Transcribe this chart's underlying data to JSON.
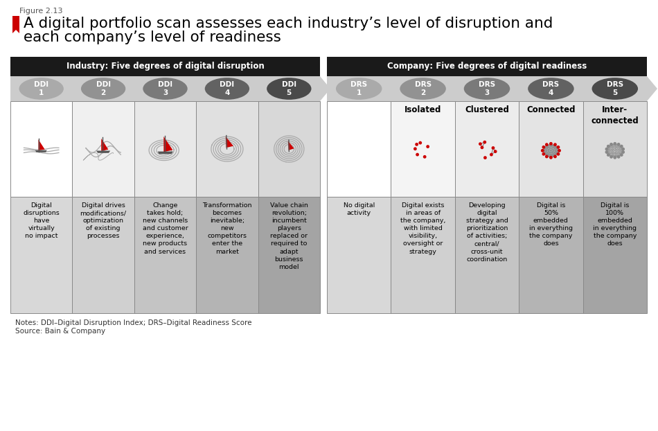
{
  "figure_label": "Figure 2.13",
  "title_line1": "A digital portfolio scan assesses each industry’s level of disruption and",
  "title_line2": "each company’s level of readiness",
  "red_color": "#cc0000",
  "bg_color": "#ffffff",
  "notes": "Notes: DDI–Digital Disruption Index; DRS–Digital Readiness Score",
  "source": "Source: Bain & Company",
  "left_header": "Industry: Five degrees of digital disruption",
  "right_header": "Company: Five degrees of digital readiness",
  "ddi_labels": [
    "DDI\n1",
    "DDI\n2",
    "DDI\n3",
    "DDI\n4",
    "DDI\n5"
  ],
  "drs_labels": [
    "DRS\n1",
    "DRS\n2",
    "DRS\n3",
    "DRS\n4",
    "DRS\n5"
  ],
  "ddi_descriptions": [
    "Digital\ndisruptions\nhave\nvirtually\nno impact",
    "Digital drives\nmodifications/\noptimization\nof existing\nprocesses",
    "Change\ntakes hold;\nnew channels\nand customer\nexperience,\nnew products\nand services",
    "Transformation\nbecomes\ninevitable;\nnew\ncompetitors\nenter the\nmarket",
    "Value chain\nrevolution;\nincumbent\nplayers\nreplaced or\nrequired to\nadapt\nbusiness\nmodel"
  ],
  "drs_descriptions": [
    "No digital\nactivity",
    "Digital exists\nin areas of\nthe company,\nwith limited\nvisibility,\noversight or\nstrategy",
    "Developing\ndigital\nstrategy and\nprioritization\nof activities;\ncentral/\ncross-unit\ncoordination",
    "Digital is\n50%\nembedded\nin everything\nthe company\ndoes",
    "Digital is\n100%\nembedded\nin everything\nthe company\ndoes"
  ],
  "drs_titles": [
    "",
    "Isolated",
    "Clustered",
    "Connected",
    "Inter-\nconnected"
  ],
  "img_cell_colors": [
    "#ffffff",
    "#e8e8e8",
    "#e0e0e0",
    "#d8d8d8",
    "#d0d0d0"
  ],
  "txt_cell_colors": [
    "#d4d4d4",
    "#cccccc",
    "#c0c0c0",
    "#b0b0b0",
    "#a0a0a0"
  ]
}
